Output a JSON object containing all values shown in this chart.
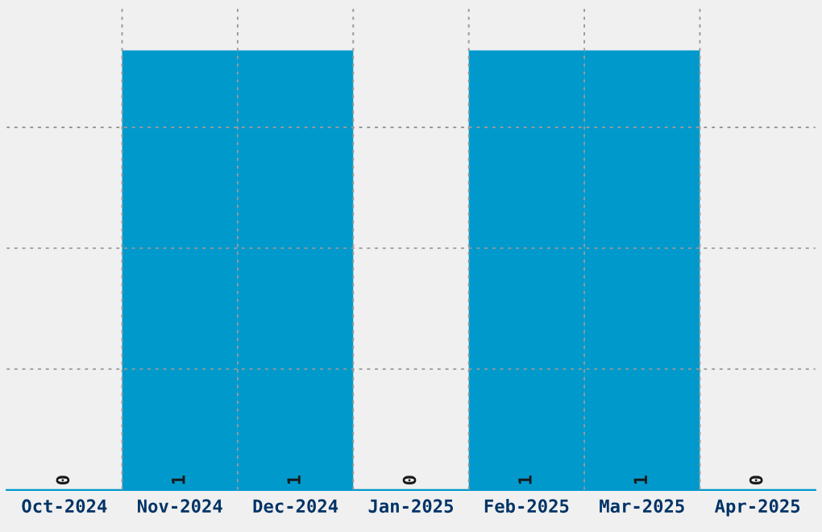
{
  "chart_data": {
    "type": "bar",
    "categories": [
      "Oct-2024",
      "Nov-2024",
      "Dec-2024",
      "Jan-2025",
      "Feb-2025",
      "Mar-2025",
      "Apr-2025"
    ],
    "values": [
      0,
      1,
      1,
      0,
      1,
      1,
      0
    ],
    "color": "#0099cc",
    "ylim": [
      0,
      1.1
    ],
    "yticks": [
      {
        "value": 0.275,
        "label": null
      },
      {
        "value": 0.55,
        "label": null
      },
      {
        "value": 0.825,
        "label": null
      }
    ],
    "tick_labels": "x",
    "data_labels": true,
    "grid": true
  }
}
